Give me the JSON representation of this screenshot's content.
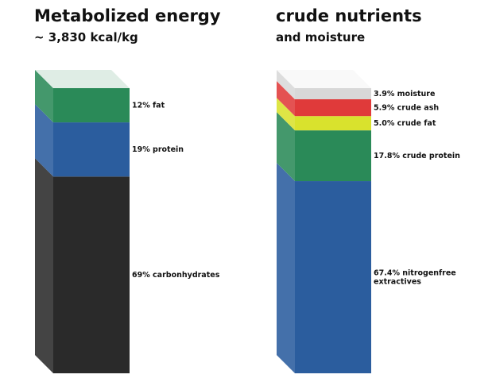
{
  "chart_data": [
    {
      "type": "bar",
      "title": "Metabolized energy",
      "subtitle": "~ 3,830 kcal/kg",
      "unit": "%",
      "segments": [
        {
          "label": "69% carbonhydrates",
          "value": 69,
          "color": "#2a2a2a"
        },
        {
          "label": "19% protein",
          "value": 19,
          "color": "#2b5d9e"
        },
        {
          "label": "12% fat",
          "value": 12,
          "color": "#2a8a58"
        }
      ]
    },
    {
      "type": "bar",
      "title": "crude nutrients",
      "subtitle": "and moisture",
      "unit": "%",
      "segments": [
        {
          "label": [
            "67.4% nitrogenfree",
            "extractives"
          ],
          "value": 67.4,
          "color": "#2b5d9e"
        },
        {
          "label": "17.8% crude protein",
          "value": 17.8,
          "color": "#2a8a58"
        },
        {
          "label": "5.0% crude fat",
          "value": 5.0,
          "color": "#d9e22d"
        },
        {
          "label": "5.9% crude ash",
          "value": 5.9,
          "color": "#e03a3a"
        },
        {
          "label": "3.9% moisture",
          "value": 3.9,
          "color": "#d8d8d8"
        }
      ]
    }
  ]
}
